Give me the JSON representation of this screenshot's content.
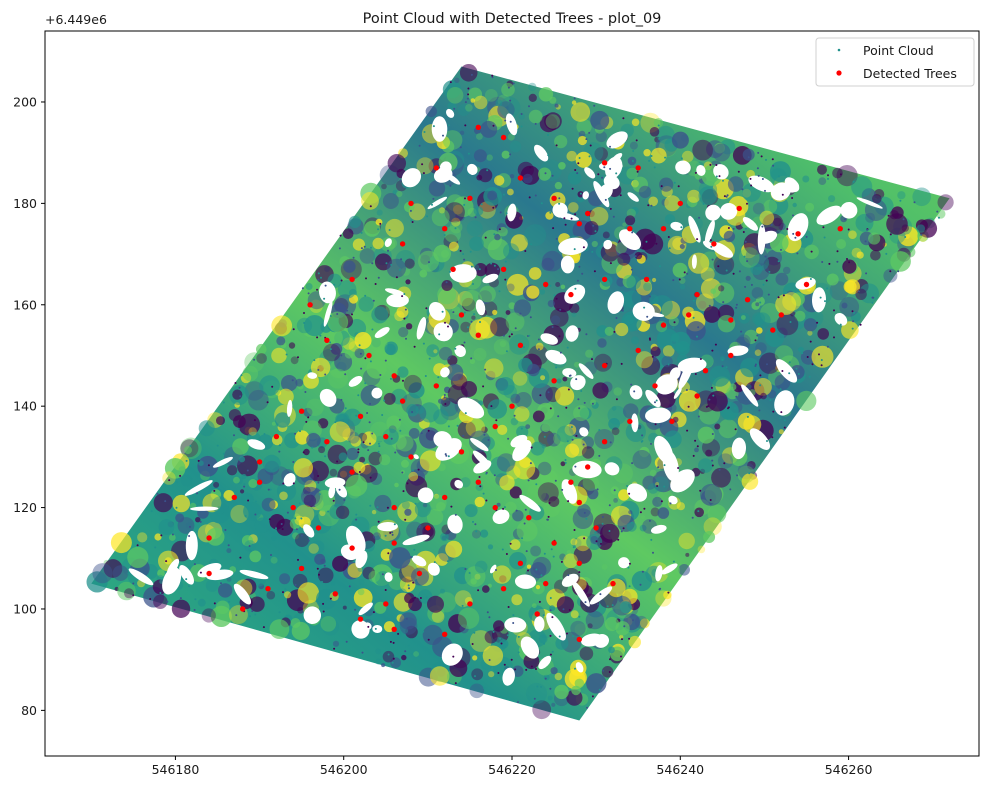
{
  "chart_data": {
    "type": "scatter",
    "title": "Point Cloud with Detected Trees - plot_09",
    "xlabel": "",
    "ylabel": "",
    "y_offset_label": "+6.449e6",
    "xlim": [
      546164.5,
      546275.5
    ],
    "ylim": [
      71,
      214
    ],
    "x_ticks": [
      546180,
      546200,
      546220,
      546240,
      546260
    ],
    "y_ticks": [
      80,
      100,
      120,
      140,
      160,
      180,
      200
    ],
    "grid": false,
    "legend_position": "top-right",
    "colormap": [
      "#440154",
      "#3b528b",
      "#21918c",
      "#5ec962",
      "#fde725"
    ],
    "point_cloud_region": {
      "corners": [
        [
          546170,
          105
        ],
        [
          546214,
          207
        ],
        [
          546272,
          181
        ],
        [
          546228,
          78
        ]
      ]
    },
    "series": [
      {
        "name": "Point Cloud",
        "marker": "small-dot",
        "color": "#21918c"
      },
      {
        "name": "Detected Trees",
        "marker": "circle",
        "color": "#ff0000",
        "points": [
          [
            546216,
            195
          ],
          [
            546219,
            193
          ],
          [
            546231,
            188
          ],
          [
            546235,
            187
          ],
          [
            546247,
            179
          ],
          [
            546254,
            174
          ],
          [
            546259,
            175
          ],
          [
            546244,
            172
          ],
          [
            546238,
            175
          ],
          [
            546228,
            176
          ],
          [
            546212,
            175
          ],
          [
            546207,
            172
          ],
          [
            546201,
            165
          ],
          [
            546196,
            160
          ],
          [
            546198,
            153
          ],
          [
            546203,
            150
          ],
          [
            546206,
            146
          ],
          [
            546211,
            144
          ],
          [
            546213,
            167
          ],
          [
            546219,
            167
          ],
          [
            546224,
            164
          ],
          [
            546227,
            162
          ],
          [
            546231,
            165
          ],
          [
            546236,
            165
          ],
          [
            546242,
            162
          ],
          [
            546248,
            161
          ],
          [
            546252,
            158
          ],
          [
            546255,
            164
          ],
          [
            546251,
            155
          ],
          [
            546246,
            150
          ],
          [
            546243,
            147
          ],
          [
            546237,
            144
          ],
          [
            546239,
            137
          ],
          [
            546234,
            137
          ],
          [
            546231,
            133
          ],
          [
            546229,
            128
          ],
          [
            546227,
            125
          ],
          [
            546228,
            121
          ],
          [
            546230,
            116
          ],
          [
            546225,
            113
          ],
          [
            546221,
            109
          ],
          [
            546219,
            104
          ],
          [
            546223,
            99
          ],
          [
            546228,
            94
          ],
          [
            546215,
            101
          ],
          [
            546212,
            95
          ],
          [
            546209,
            107
          ],
          [
            546206,
            113
          ],
          [
            546201,
            112
          ],
          [
            546197,
            116
          ],
          [
            546194,
            120
          ],
          [
            546190,
            125
          ],
          [
            546187,
            122
          ],
          [
            546184,
            114
          ],
          [
            546184,
            107
          ],
          [
            546188,
            100
          ],
          [
            546191,
            104
          ],
          [
            546195,
            108
          ],
          [
            546199,
            103
          ],
          [
            546202,
            98
          ],
          [
            546205,
            101
          ],
          [
            546206,
            96
          ],
          [
            546201,
            127
          ],
          [
            546205,
            134
          ],
          [
            546202,
            138
          ],
          [
            546207,
            141
          ],
          [
            546198,
            133
          ],
          [
            546195,
            139
          ],
          [
            546192,
            134
          ],
          [
            546190,
            129
          ],
          [
            546214,
            158
          ],
          [
            546216,
            154
          ],
          [
            546221,
            152
          ],
          [
            546225,
            145
          ],
          [
            546220,
            140
          ],
          [
            546218,
            136
          ],
          [
            546214,
            131
          ],
          [
            546216,
            125
          ],
          [
            546218,
            120
          ],
          [
            546222,
            118
          ],
          [
            546231,
            148
          ],
          [
            546235,
            151
          ],
          [
            546238,
            156
          ],
          [
            546241,
            158
          ],
          [
            546246,
            157
          ],
          [
            546221,
            185
          ],
          [
            546225,
            181
          ],
          [
            546229,
            178
          ],
          [
            546206,
            120
          ],
          [
            546212,
            122
          ],
          [
            546210,
            116
          ],
          [
            546208,
            130
          ],
          [
            546234,
            175
          ],
          [
            546240,
            180
          ],
          [
            546242,
            142
          ],
          [
            546224,
            105
          ],
          [
            546228,
            109
          ],
          [
            546232,
            105
          ],
          [
            546211,
            187
          ],
          [
            546215,
            181
          ],
          [
            546208,
            180
          ]
        ]
      }
    ]
  }
}
